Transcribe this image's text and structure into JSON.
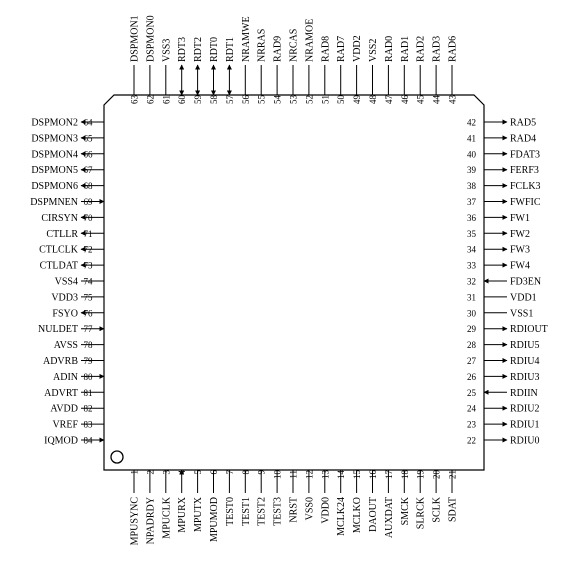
{
  "package": {
    "top": [
      {
        "num": "63",
        "name": "DSPMON1",
        "dir": "none"
      },
      {
        "num": "62",
        "name": "DSPMON0",
        "dir": "none"
      },
      {
        "num": "61",
        "name": "VSS3",
        "dir": "none"
      },
      {
        "num": "60",
        "name": "RDT3",
        "dir": "bi"
      },
      {
        "num": "59",
        "name": "RDT2",
        "dir": "bi"
      },
      {
        "num": "58",
        "name": "RDT0",
        "dir": "bi"
      },
      {
        "num": "57",
        "name": "RDT1",
        "dir": "bi"
      },
      {
        "num": "56",
        "name": "NRAMWE",
        "dir": "none"
      },
      {
        "num": "55",
        "name": "NRRAS",
        "dir": "none"
      },
      {
        "num": "54",
        "name": "RAD9",
        "dir": "none"
      },
      {
        "num": "53",
        "name": "NRCAS",
        "dir": "none"
      },
      {
        "num": "52",
        "name": "NRAMOE",
        "dir": "none"
      },
      {
        "num": "51",
        "name": "RAD8",
        "dir": "none"
      },
      {
        "num": "50",
        "name": "RAD7",
        "dir": "none"
      },
      {
        "num": "49",
        "name": "VDD2",
        "dir": "none"
      },
      {
        "num": "48",
        "name": "VSS2",
        "dir": "none"
      },
      {
        "num": "47",
        "name": "RAD0",
        "dir": "none"
      },
      {
        "num": "46",
        "name": "RAD1",
        "dir": "none"
      },
      {
        "num": "45",
        "name": "RAD2",
        "dir": "none"
      },
      {
        "num": "44",
        "name": "RAD3",
        "dir": "none"
      },
      {
        "num": "43",
        "name": "RAD6",
        "dir": "none"
      }
    ],
    "right": [
      {
        "num": "42",
        "name": "RAD5",
        "dir": "out"
      },
      {
        "num": "41",
        "name": "RAD4",
        "dir": "out"
      },
      {
        "num": "40",
        "name": "FDAT3",
        "dir": "out"
      },
      {
        "num": "39",
        "name": "FERF3",
        "dir": "out"
      },
      {
        "num": "38",
        "name": "FCLK3",
        "dir": "out"
      },
      {
        "num": "37",
        "name": "FWFIC",
        "dir": "out"
      },
      {
        "num": "36",
        "name": "FW1",
        "dir": "out"
      },
      {
        "num": "35",
        "name": "FW2",
        "dir": "out"
      },
      {
        "num": "34",
        "name": "FW3",
        "dir": "out"
      },
      {
        "num": "33",
        "name": "FW4",
        "dir": "out"
      },
      {
        "num": "32",
        "name": "FD3EN",
        "dir": "in"
      },
      {
        "num": "31",
        "name": "VDD1",
        "dir": "none"
      },
      {
        "num": "30",
        "name": "VSS1",
        "dir": "none"
      },
      {
        "num": "29",
        "name": "RDIOUT",
        "dir": "out"
      },
      {
        "num": "28",
        "name": "RDIU5",
        "dir": "out"
      },
      {
        "num": "27",
        "name": "RDIU4",
        "dir": "out"
      },
      {
        "num": "26",
        "name": "RDIU3",
        "dir": "out"
      },
      {
        "num": "25",
        "name": "RDIIN",
        "dir": "in"
      },
      {
        "num": "24",
        "name": "RDIU2",
        "dir": "out"
      },
      {
        "num": "23",
        "name": "RDIU1",
        "dir": "out"
      },
      {
        "num": "22",
        "name": "RDIU0",
        "dir": "out"
      }
    ],
    "left": [
      {
        "num": "64",
        "name": "DSPMON2",
        "dir": "out"
      },
      {
        "num": "65",
        "name": "DSPMON3",
        "dir": "out"
      },
      {
        "num": "66",
        "name": "DSPMON4",
        "dir": "out"
      },
      {
        "num": "67",
        "name": "DSPMON5",
        "dir": "out"
      },
      {
        "num": "68",
        "name": "DSPMON6",
        "dir": "out"
      },
      {
        "num": "69",
        "name": "DSPMNEN",
        "dir": "in"
      },
      {
        "num": "70",
        "name": "CIRSYN",
        "dir": "out"
      },
      {
        "num": "71",
        "name": "CTLLR",
        "dir": "out"
      },
      {
        "num": "72",
        "name": "CTLCLK",
        "dir": "out"
      },
      {
        "num": "73",
        "name": "CTLDAT",
        "dir": "out"
      },
      {
        "num": "74",
        "name": "VSS4",
        "dir": "none"
      },
      {
        "num": "75",
        "name": "VDD3",
        "dir": "none"
      },
      {
        "num": "76",
        "name": "FSYO",
        "dir": "out"
      },
      {
        "num": "77",
        "name": "NULDET",
        "dir": "in"
      },
      {
        "num": "78",
        "name": "AVSS",
        "dir": "none"
      },
      {
        "num": "79",
        "name": "ADVRB",
        "dir": "none"
      },
      {
        "num": "80",
        "name": "ADIN",
        "dir": "in"
      },
      {
        "num": "81",
        "name": "ADVRT",
        "dir": "none"
      },
      {
        "num": "82",
        "name": "AVDD",
        "dir": "none"
      },
      {
        "num": "83",
        "name": "VREF",
        "dir": "none"
      },
      {
        "num": "84",
        "name": "IQMOD",
        "dir": "in"
      }
    ],
    "bottom": [
      {
        "num": "1",
        "name": "MPUSYNC",
        "dir": "none"
      },
      {
        "num": "2",
        "name": "NPADRDY",
        "dir": "none"
      },
      {
        "num": "3",
        "name": "MPUCLK",
        "dir": "none"
      },
      {
        "num": "4",
        "name": "MPURX",
        "dir": "in"
      },
      {
        "num": "5",
        "name": "MPUTX",
        "dir": "none"
      },
      {
        "num": "6",
        "name": "MPUMOD",
        "dir": "none"
      },
      {
        "num": "7",
        "name": "TEST0",
        "dir": "none"
      },
      {
        "num": "8",
        "name": "TEST1",
        "dir": "none"
      },
      {
        "num": "9",
        "name": "TEST2",
        "dir": "none"
      },
      {
        "num": "10",
        "name": "TEST3",
        "dir": "none"
      },
      {
        "num": "11",
        "name": "NRST",
        "dir": "none"
      },
      {
        "num": "12",
        "name": "VSS0",
        "dir": "none"
      },
      {
        "num": "13",
        "name": "VDD0",
        "dir": "none"
      },
      {
        "num": "14",
        "name": "MCLK24",
        "dir": "none"
      },
      {
        "num": "15",
        "name": "MCLKO",
        "dir": "none"
      },
      {
        "num": "16",
        "name": "DAOUT",
        "dir": "none"
      },
      {
        "num": "17",
        "name": "AUXDAT",
        "dir": "none"
      },
      {
        "num": "18",
        "name": "SMCK",
        "dir": "none"
      },
      {
        "num": "19",
        "name": "SLRCK",
        "dir": "none"
      },
      {
        "num": "20",
        "name": "SCLK",
        "dir": "none"
      },
      {
        "num": "21",
        "name": "SDAT",
        "dir": "none"
      }
    ]
  }
}
